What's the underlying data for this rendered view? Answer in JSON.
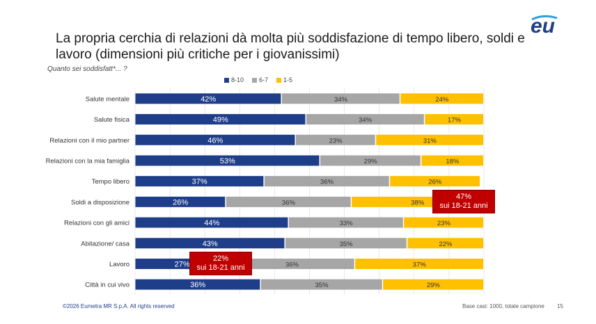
{
  "title": "La propria cerchia di relazioni dà molta più soddisfazione di tempo libero, soldi e lavoro (dimensioni più critiche per i giovanissimi)",
  "subtitle": "Quanto sei soddisfatt*... ?",
  "logo_text": "eu",
  "footer": {
    "copyright": "©2026 Eumetra MR S.p.A. All rights reserved",
    "base": "Base casi: 1000, totale campione",
    "page": "15"
  },
  "colors": {
    "s1": "#1f3e8a",
    "s2": "#a6a6a6",
    "s3": "#ffc000",
    "accent": "#c00000"
  },
  "chart_data": {
    "type": "bar",
    "orientation": "horizontal",
    "stacked": true,
    "categories": [
      "Salute mentale",
      "Salute fisica",
      "Relazioni con il mio partner",
      "Relazioni con la mia famiglia",
      "Tempo libero",
      "Soldi a disposizione",
      "Relazioni con gli amici",
      "Abitazione/ casa",
      "Lavoro",
      "Città in cui vivo"
    ],
    "series": [
      {
        "name": "8-10",
        "values": [
          42,
          49,
          46,
          53,
          37,
          26,
          44,
          43,
          27,
          36
        ],
        "labels": [
          "42%",
          "49%",
          "46%",
          "53%",
          "37%",
          "26%",
          "44%",
          "43%",
          "27%",
          "36%"
        ]
      },
      {
        "name": "6-7",
        "values": [
          34,
          34,
          23,
          29,
          36,
          36,
          33,
          35,
          36,
          35
        ],
        "labels": [
          "34%",
          "34%",
          "23%",
          "29%",
          "36%",
          "36%",
          "33%",
          "35%",
          "36%",
          "35%"
        ]
      },
      {
        "name": "1-5",
        "values": [
          24,
          17,
          31,
          18,
          26,
          38,
          23,
          22,
          37,
          29
        ],
        "labels": [
          "24%",
          "17%",
          "31%",
          "18%",
          "26%",
          "38%",
          "23%",
          "22%",
          "37%",
          "29%"
        ]
      }
    ],
    "xlim": [
      0,
      100
    ],
    "legend_position": "top",
    "grid": true,
    "annotations": [
      {
        "category": "Soldi a disposizione",
        "series": "1-5",
        "line1": "47%",
        "line2": "sui 18-21 anni"
      },
      {
        "category": "Lavoro",
        "series": "8-10",
        "line1": "22%",
        "line2": "sui 18-21 anni"
      }
    ]
  }
}
